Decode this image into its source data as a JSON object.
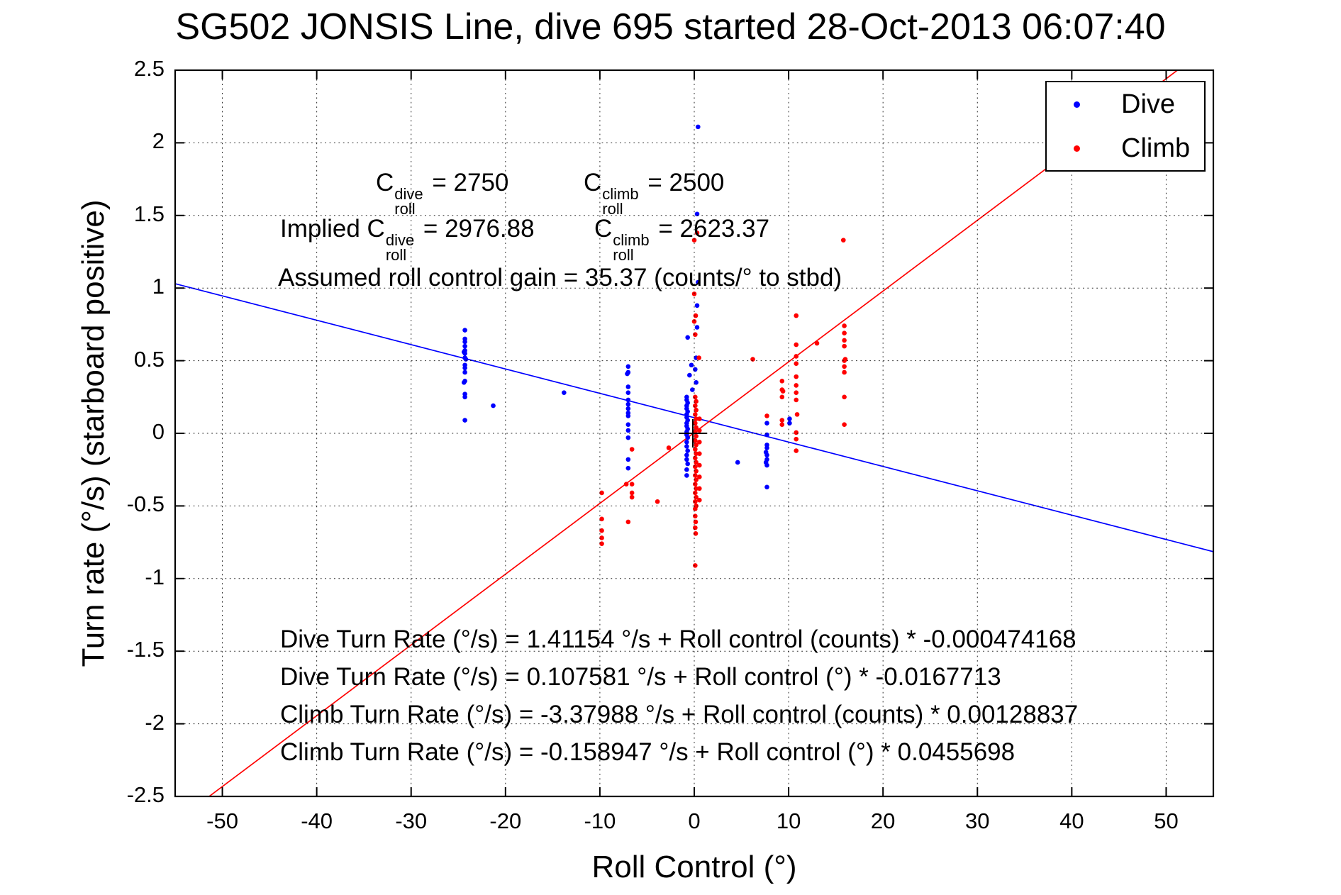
{
  "title": "SG502 JONSIS Line, dive 695 started 28-Oct-2013 06:07:40",
  "axes": {
    "xlabel": "Roll Control (°)",
    "ylabel": "Turn rate (°/s) (starboard positive)"
  },
  "legend": {
    "items": [
      {
        "label": "Dive",
        "color": "#0000ff"
      },
      {
        "label": "Climb",
        "color": "#ff0000"
      }
    ]
  },
  "annotations": {
    "cal1": [
      {
        "t": "C"
      },
      {
        "sup": "dive",
        "sub": "roll"
      },
      {
        "t": " = 2750"
      }
    ],
    "cal2": [
      {
        "t": "C"
      },
      {
        "sup": "climb",
        "sub": "roll"
      },
      {
        "t": " = 2500"
      }
    ],
    "implied1": [
      {
        "t": "Implied C"
      },
      {
        "sup": "dive",
        "sub": "roll"
      },
      {
        "t": " = 2976.88"
      }
    ],
    "implied2": [
      {
        "t": "C"
      },
      {
        "sup": "climb",
        "sub": "roll"
      },
      {
        "t": " = 2623.37"
      }
    ],
    "gain": "Assumed roll control gain = 35.37 (counts/° to stbd)",
    "equations": [
      "Dive Turn Rate (°/s) = 1.41154 °/s + Roll control (counts) * -0.000474168",
      "Dive Turn Rate (°/s) = 0.107581 °/s + Roll control (°) * -0.0167713",
      "Climb Turn Rate (°/s) = -3.37988 °/s + Roll control (counts) * 0.00128837",
      "Climb Turn Rate (°/s) = -0.158947 °/s + Roll control (°) * 0.0455698"
    ]
  },
  "colors": {
    "dive": "#0000ff",
    "climb": "#ff0000",
    "axis": "#000000",
    "background": "#ffffff"
  },
  "chart_data": {
    "type": "scatter",
    "title": "SG502 JONSIS Line, dive 695 started 28-Oct-2013 06:07:40",
    "xlabel": "Roll Control (°)",
    "ylabel": "Turn rate (°/s) (starboard positive)",
    "xlim": [
      -55,
      55
    ],
    "ylim": [
      -2.5,
      2.5
    ],
    "xticks": [
      -50,
      -40,
      -30,
      -20,
      -10,
      0,
      10,
      20,
      30,
      40,
      50
    ],
    "yticks": [
      -2.5,
      -2,
      -1.5,
      -1,
      -0.5,
      0,
      0.5,
      1,
      1.5,
      2,
      2.5
    ],
    "grid": "dotted",
    "legend_position": "top-right",
    "series": [
      {
        "name": "Dive",
        "color": "#0000ff",
        "marker": ".",
        "points": [
          [
            -24.3,
            0.71
          ],
          [
            -24.3,
            0.65
          ],
          [
            -24.3,
            0.63
          ],
          [
            -24.3,
            0.6
          ],
          [
            -24.3,
            0.57
          ],
          [
            -24.4,
            0.56
          ],
          [
            -24.3,
            0.55
          ],
          [
            -24.3,
            0.52
          ],
          [
            -24.2,
            0.51
          ],
          [
            -24.3,
            0.47
          ],
          [
            -24.3,
            0.45
          ],
          [
            -24.3,
            0.42
          ],
          [
            -24.3,
            0.36
          ],
          [
            -24.4,
            0.35
          ],
          [
            -24.3,
            0.27
          ],
          [
            -24.3,
            0.25
          ],
          [
            -24.3,
            0.09
          ],
          [
            -21.3,
            0.19
          ],
          [
            -13.8,
            0.28
          ],
          [
            -7,
            0.46
          ],
          [
            -7,
            0.42
          ],
          [
            -7.1,
            0.41
          ],
          [
            -7,
            0.32
          ],
          [
            -7,
            0.28
          ],
          [
            -7,
            0.23
          ],
          [
            -7,
            0.2
          ],
          [
            -7,
            0.17
          ],
          [
            -7,
            0.14
          ],
          [
            -7,
            0.12
          ],
          [
            -7,
            0.06
          ],
          [
            -7,
            0.02
          ],
          [
            -7,
            -0.03
          ],
          [
            -7,
            -0.18
          ],
          [
            -7,
            -0.24
          ],
          [
            0.4,
            2.11
          ],
          [
            0.3,
            1.51
          ],
          [
            0.4,
            1.04
          ],
          [
            0.3,
            0.88
          ],
          [
            0.3,
            0.73
          ],
          [
            -0.7,
            0.66
          ],
          [
            0.2,
            0.52
          ],
          [
            -0.3,
            0.47
          ],
          [
            0.1,
            0.44
          ],
          [
            -0.5,
            0.4
          ],
          [
            0.2,
            0.35
          ],
          [
            -0.2,
            0.3
          ],
          [
            -0.8,
            0.25
          ],
          [
            -0.8,
            0.23
          ],
          [
            -0.7,
            0.21
          ],
          [
            -0.8,
            0.19
          ],
          [
            -0.8,
            0.17
          ],
          [
            -0.7,
            0.15
          ],
          [
            -0.8,
            0.13
          ],
          [
            -0.8,
            0.11
          ],
          [
            -0.7,
            0.09
          ],
          [
            -0.8,
            0.07
          ],
          [
            -0.8,
            0.05
          ],
          [
            -0.7,
            0.03
          ],
          [
            -0.8,
            0.01
          ],
          [
            -0.8,
            -0.01
          ],
          [
            -0.7,
            -0.03
          ],
          [
            -0.8,
            -0.06
          ],
          [
            -0.8,
            -0.09
          ],
          [
            -0.7,
            -0.12
          ],
          [
            -0.8,
            -0.15
          ],
          [
            -0.8,
            -0.18
          ],
          [
            -0.7,
            -0.21
          ],
          [
            -0.8,
            -0.25
          ],
          [
            -0.8,
            -0.29
          ],
          [
            4.6,
            -0.2
          ],
          [
            7.7,
            0.07
          ],
          [
            7.7,
            -0.01
          ],
          [
            7.7,
            -0.08
          ],
          [
            7.7,
            -0.1
          ],
          [
            7.6,
            -0.13
          ],
          [
            7.7,
            -0.15
          ],
          [
            7.7,
            -0.18
          ],
          [
            7.6,
            -0.2
          ],
          [
            7.7,
            -0.22
          ],
          [
            7.7,
            -0.37
          ],
          [
            10.1,
            0.1
          ],
          [
            10.1,
            0.07
          ]
        ]
      },
      {
        "name": "Climb",
        "color": "#ff0000",
        "marker": ".",
        "points": [
          [
            0.3,
            1.38
          ],
          [
            0,
            1.33
          ],
          [
            0,
            0.96
          ],
          [
            0.15,
            0.81
          ],
          [
            0,
            0.77
          ],
          [
            0.1,
            0.68
          ],
          [
            0.5,
            0.52
          ],
          [
            0.1,
            0.25
          ],
          [
            0.2,
            0.22
          ],
          [
            0.1,
            0.19
          ],
          [
            0.2,
            0.16
          ],
          [
            0.1,
            0.13
          ],
          [
            0.2,
            0.1
          ],
          [
            0.1,
            0.07
          ],
          [
            0.2,
            0.04
          ],
          [
            0.1,
            0.01
          ],
          [
            0.2,
            -0.02
          ],
          [
            0.1,
            -0.05
          ],
          [
            0.2,
            -0.08
          ],
          [
            0.1,
            -0.11
          ],
          [
            0.2,
            -0.14
          ],
          [
            0.1,
            -0.17
          ],
          [
            0.2,
            -0.2
          ],
          [
            0.1,
            -0.23
          ],
          [
            0.2,
            -0.26
          ],
          [
            0.1,
            -0.29
          ],
          [
            0.2,
            -0.32
          ],
          [
            0.1,
            -0.35
          ],
          [
            0.2,
            -0.38
          ],
          [
            0.1,
            -0.41
          ],
          [
            0.2,
            -0.44
          ],
          [
            0.1,
            -0.47
          ],
          [
            0.2,
            -0.5
          ],
          [
            0.1,
            -0.52
          ],
          [
            0.55,
            0.1
          ],
          [
            0.55,
            0.02
          ],
          [
            0.55,
            -0.06
          ],
          [
            0.55,
            -0.14
          ],
          [
            0.55,
            -0.22
          ],
          [
            0.55,
            -0.3
          ],
          [
            0.55,
            -0.38
          ],
          [
            0.55,
            -0.46
          ],
          [
            0.1,
            -0.57
          ],
          [
            0.15,
            -0.61
          ],
          [
            0.1,
            -0.65
          ],
          [
            0.15,
            -0.69
          ],
          [
            0.1,
            -0.91
          ],
          [
            -2.7,
            -0.1
          ],
          [
            -3.9,
            -0.47
          ],
          [
            -9.8,
            -0.41
          ],
          [
            -9.8,
            -0.59
          ],
          [
            -9.8,
            -0.67
          ],
          [
            -9.8,
            -0.72
          ],
          [
            -9.8,
            -0.76
          ],
          [
            -6.6,
            -0.11
          ],
          [
            -6.6,
            -0.35
          ],
          [
            -7.2,
            -0.35
          ],
          [
            -6.6,
            -0.41
          ],
          [
            -6.6,
            -0.44
          ],
          [
            -7,
            -0.61
          ],
          [
            6.2,
            0.51
          ],
          [
            7.7,
            0.12
          ],
          [
            9.3,
            0.36
          ],
          [
            9.3,
            0.3
          ],
          [
            9.4,
            0.29
          ],
          [
            9.3,
            0.25
          ],
          [
            9.3,
            0.09
          ],
          [
            9.3,
            0.06
          ],
          [
            10.8,
            0.81
          ],
          [
            10.8,
            0.61
          ],
          [
            10.8,
            0.53
          ],
          [
            10.8,
            0.48
          ],
          [
            10.8,
            0.39
          ],
          [
            10.8,
            0.33
          ],
          [
            10.8,
            0.28
          ],
          [
            10.8,
            0.23
          ],
          [
            10.9,
            0.13
          ],
          [
            10.8,
            0.005
          ],
          [
            10.8,
            -0.04
          ],
          [
            10.8,
            -0.12
          ],
          [
            13,
            0.62
          ],
          [
            15.8,
            1.33
          ],
          [
            15.9,
            0.74
          ],
          [
            15.9,
            0.69
          ],
          [
            15.9,
            0.64
          ],
          [
            15.9,
            0.6
          ],
          [
            16,
            0.51
          ],
          [
            15.9,
            0.5
          ],
          [
            15.9,
            0.46
          ],
          [
            15.9,
            0.42
          ],
          [
            15.9,
            0.25
          ],
          [
            15.9,
            0.06
          ]
        ]
      }
    ],
    "fit_lines": [
      {
        "name": "dive-fit",
        "color": "#0000ff",
        "points": [
          [
            -55,
            1.03
          ],
          [
            55,
            -0.815
          ]
        ]
      },
      {
        "name": "climb-fit",
        "color": "#ff0000",
        "points": [
          [
            -51.4,
            -2.5
          ],
          [
            51.2,
            2.5
          ]
        ]
      }
    ],
    "origin_marker": {
      "x": -0.15,
      "y": 0,
      "color": "#000000"
    }
  }
}
